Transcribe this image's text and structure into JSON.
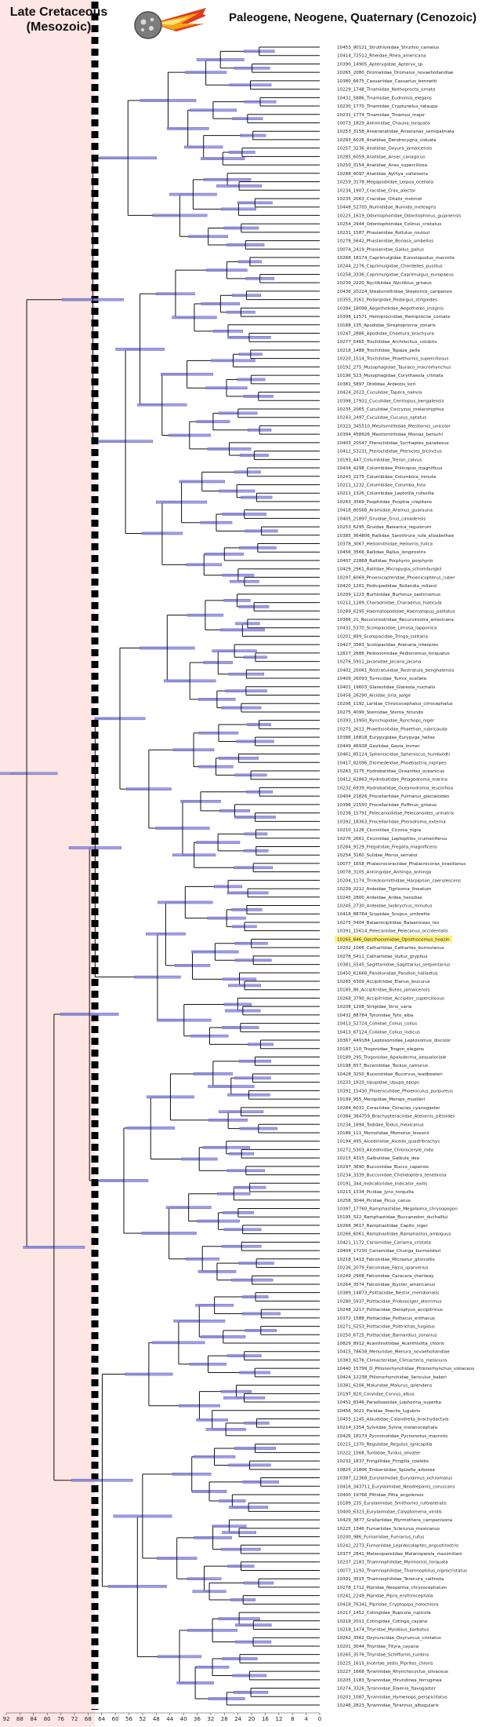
{
  "header": {
    "left_title_line1": "Late Cretaceous",
    "left_title_line2": "(Mesozoic)",
    "right_title": "Paleogene, Neogene, Quaternary (Cenozoic)"
  },
  "colors": {
    "mesozoic_bg": "#fde6e3",
    "kpg_boundary": "#000000",
    "branch": "#111111",
    "node_bar": "#8f8ce0",
    "node_bar_border": "#5a57b8",
    "highlight": "#fff27a"
  },
  "icon": "asteroid-impact-icon",
  "chart_data": {
    "type": "phylogenetic-tree",
    "title": "",
    "xlabel": "",
    "ylabel": "",
    "xlim": [
      92,
      0
    ],
    "x_ticks": [
      92,
      88,
      84,
      80,
      76,
      72,
      68,
      64,
      60,
      56,
      52,
      48,
      44,
      40,
      36,
      32,
      28,
      24,
      20,
      16,
      12,
      8,
      4,
      0
    ],
    "kpg_boundary_ma": 66,
    "highlighted_leaf": "10265_846_Opisthocomidae_Opisthocomus_hoazin",
    "leaves": [
      "10453_90121_Struthionidae_Struthio_camelus",
      "10414_72512_Rheidae_Rhea_americana",
      "10390_14905_Apterygidae_Apteryx_sp",
      "10265_2080_Dromaiidae_Dromaius_novaehollandiae",
      "10380_6675_Casuariidae_Casuarius_bennetti",
      "10229_1748_Tinamidae_Nothoprocta_ornata",
      "10432_5886_Tinamidae_Eudromia_elegans",
      "10230_1770_Tinamidae_Crypturellus_tataupa",
      "10231_1774_Tinamidae_Tinamus_major",
      "10073_1829_Anhimidae_Chauna_torquata",
      "10253_3158_Anseranatidae_Anseranas_semipalmata",
      "10283_6026_Anatidae_Dendrocygna_viduata",
      "10257_3236_Anatidae_Oxyura_jamaicensis",
      "10285_6059_Anatidae_Anser_canagicus",
      "10250_3154_Anatidae_Anas_superciliosa",
      "10288_6097_Anatidae_Aythya_valisineria",
      "10259_3178_Megapodiidae_Leipoa_ocellata",
      "10234_1907_Cracidae_Crax_alector",
      "10235_2063_Cracidae_Ortalis_motmot",
      "10448_52705_Numididae_Numida_meleagris",
      "10225_1619_Odontophoridae_Odontophorus_gujanensis",
      "10254_2944_Odontophoridae_Colinus_cristatus",
      "10231_1587_Phasianidae_Rollulus_rouloul",
      "10278_5642_Phasianidae_Bonasa_umbellus",
      "10074_2419_Phasianidae_Gallus_gallus",
      "10268_18174_Caprimulgidae_Eurostopodus_macrotis",
      "10244_2276_Caprimulgidae_Chordeiles_pusillus",
      "10258_3336_Caprimulgidae_Caprimulgus_europaeus",
      "10239_2220_Nyctibiidae_Nyctibius_griseus",
      "10436_20224_Steatornithidae_Steatornis_caripensis",
      "10355_3161_Podargidae_Podargus_strigoides",
      "10394_18098_Aegothelidae_Aegotheles_insignis",
      "10398_12571_Hemiprocnidae_Hemiprocne_comata",
      "10188_135_Apodidae_Streptoprocne_zonaris",
      "10247_2886_Apodidae_Chaetura_brachyura",
      "10277_5465_Trochilidae_Archilochus_colubris",
      "10218_1488_Trochilidae_Topaza_pella",
      "10220_1514_Trochilidae_Phaethornis_superciliosus",
      "10192_275_Musophagidae_Tauraco_macrorhynchus",
      "10196_523_Musophagidae_Corythaeola_cristata",
      "10381_5897_Otididae_Ardeotis_kori",
      "10424_2023_Cuculidae_Tapera_naevia",
      "10398_17932_Cuculidae_Centropus_bengalensis",
      "10235_2065_Cuculidae_Coccyzus_melacoryphus",
      "10243_2497_Cuculidae_Cuculus_optatus",
      "10323_345510_Mesitornithidae_Mesitornis_unicolor",
      "10394_458926_Mesitornithidae_Monias_benschi",
      "10403_20547_Pteroclididae_Syrrhaptes_paradoxus",
      "10411_53231_Pteroclididae_Pterocles_bicinctus",
      "10193_447_Columbidae_Treron_calvus",
      "10434_4298_Columbidae_Ptilinopus_magnificus",
      "10243_2275_Columbidae_Columbina_minuta",
      "10211_1232_Columbidae_Columba_livia",
      "10211_1326_Columbidae_Leptotila_rufaxilla",
      "10263_3569_Psophiidae_Psophia_crepitans",
      "10418_80568_Aramidae_Aramus_guarauna",
      "10405_21897_Gruidae_Grus_canadensis",
      "10253_6295_Gruidae_Balearica_regulorum",
      "10385_364806_Rallidae_Sarothrura_rufa_elizabethae",
      "10378_3067_Heliornithidae_Heliornis_fulica",
      "10456_3566_Rallidae_Rallus_longirostris",
      "10407_22868_Rallidae_Porphyrio_porphyrio",
      "10429_2961_Rallidae_Micropygia_schomburgkii",
      "10297_6069_Phoenicopteridae_Phoenicopterus_ruber",
      "10420_1201_Podicipedidae_Rollandia_rolland",
      "10209_1223_Burhinidae_Burhinus_oedicnemus",
      "10212_1289_Charadriidae_Charadrius_hiaticula",
      "10289_6295_Haematopodidae_Haematopus_palliatus",
      "10386_21_Recurvirostridae_Recurvirostra_americana",
      "10431_5370_Scolopacidae_Limosa_lapponica",
      "10201_899_Scolopacidae_Tringa_solitaria",
      "10427_3583_Scolopacidae_Arenaria_interpres",
      "12827_2686_Pedionomidae_Pedionomus_torquatus",
      "10276_5911_Jacanidae_Jacana_jacana",
      "10402_20061_Rostratulidae_Rostratula_benghalensis",
      "10409_26093_Turnicidae_Turnix_ocellata",
      "10401_19603_Glareolidae_Glareola_nuchalis",
      "10456_26290_Alcidae_Uria_aalge",
      "10206_1192_Laridae_Chroicocephalus_cirrocephalus",
      "10275_4099_Sternidae_Sterna_hirundo",
      "10393_13950_Rynchopidae_Rynchops_niger",
      "10275_2613_Phaethontidae_Phaethon_rubricauda",
      "10386_16818_Eurypygidae_Eurypyga_helias",
      "10449_46938_Gaviidae_Gavia_immer",
      "10461_85124_Spheniscidae_Spheniscus_humboldti",
      "10417_82096_Diomedeidae_Phoebastria_nigripes",
      "10263_3175_Hydrobatidae_Oceanites_oceanicus",
      "10412_62863_Hydrobatidae_Pelagodroma_marina",
      "10232_6939_Hydrobatidae_Oceanodroma_leucorhoa",
      "10404_21826_Procellariidae_Fulmarus_glacialoides",
      "10396_22550_Procellariidae_Puffinus_griseus",
      "10238_15791_Pelecanoididae_Pelecanoides_urinatrix",
      "10392_18363_Procellariidae_Pterodroma_externa",
      "10210_1226_Ciconiidae_Ciconia_nigra",
      "10276_2661_Ciconiidae_Leptoptilos_crumeniferus",
      "10284_9129_Fregatidae_Fregata_magnificens",
      "10254_3160_Sulidae_Morus_serrator",
      "10077_1658_Phalacrocoracidae_Phalacrocorax_brasilianus",
      "10078_3105_Anhingidae_Anhinga_anhinga",
      "10204_1174_Threskiornithidae_Harpiprion_caerulescens",
      "10239_2212_Ardeidae_Tigrisoma_lineatum",
      "10245_2800_Ardeidae_Ardea_herodias",
      "10245_2730_Ardeidae_Ixobrychus_minutus",
      "10418_88784_Scopidae_Scopus_umbretta",
      "10275_5404_Balaenicipitidae_Balaeniceps_rex",
      "10391_15614_Pelecanidae_Pelecanus_occidentalis",
      "10265_846_Opisthocomidae_Opisthocomus_hoazin",
      "10202_1066_Cathartidae_Cathartes_burrovianus",
      "10278_5411_Cathartidae_Vultur_gryphus",
      "10381_5545_Sagittariidae_Sagittarius_serpentarius",
      "10450_61668_Pandionidae_Pandion_haliaetus",
      "10285_6309_Accipitridae_Elanus_leucurus",
      "10185_86_Accipitridae_Buteo_jamaicensis",
      "10268_3790_Accipitridae_Accipiter_superciliosus",
      "10208_1208_Strigidae_Strix_varia",
      "10432_88784_Tytonidae_Tyto_alba",
      "10413_52724_Coliidae_Colius_colius",
      "10413_67124_Coliidae_Colius_indicus",
      "10367_449184_Leptosomidae_Leptosomus_discolor",
      "10187_110_Trogonidae_Trogon_elegans",
      "10189_295_Trogonidae_Apaloderma_aequatoriale",
      "10198_657_Bucerotidae_Tockus_camurus",
      "10428_3250_Bucerotidae_Bucorvus_leadbeateri",
      "10233_1920_Upupidae_Upupa_epops",
      "10392_15430_Phoeniculidae_Phoeniculus_purpureus",
      "10199_955_Meropidae_Merops_muelleri",
      "10284_6031_Coraciidae_Coracias_cyanogaster",
      "10384_384759_Brachypteraciidae_Atelornis_pittoides",
      "10234_1894_Todidae_Todus_mexicanus",
      "10186_111_Momotidae_Momotus_lessonii",
      "10194_495_Alcedinidae_Alcedo_quadribrachys",
      "10272_5303_Alcedinidae_Chloroceryle_inda",
      "10215_4315_Galbulidae_Galbula_dea",
      "10297_3690_Bucconidae_Bucco_capensis",
      "10234_3339_Bucconidae_Chelidoptera_tenebrosa",
      "10191_344_Indicatoridae_Indicator_exilis",
      "10213_1334_Picidae_Jynx_torquilla",
      "10258_3044_Picidae_Picus_canus",
      "10397_17760_Ramphastidae_Megalaima_chrysopogon",
      "10195_522_Ramphastidae_Buccanodon_duchaillui",
      "10266_3617_Ramphastidae_Capito_niger",
      "10266_6061_Ramphastidae_Ramphastos_ambiguus",
      "10421_1172_Cariamidae_Cariama_cristata",
      "10404_17230_Cariamidae_Chunga_burmeisteri",
      "10218_1413_Falconidae_Micrastur_gilvicollis",
      "10236_2079_Falconidae_Falco_sparverius",
      "10249_2908_Falconidae_Caracara_cheriway",
      "10264_3574_Falconidae_Ibycter_americanus",
      "10389_14873_Psittacidae_Nestor_meridionalis",
      "10280_5937_Psittacidae_Probosciger_aterrimus",
      "10248_2217_Psittacidae_Deroptyus_accipitrinus",
      "10372_1588_Psittacidae_Psittacus_erithacus",
      "10271_5253_Psittacidae_Psittrichas_fulgidus",
      "10250_6725_Psittacidae_Barnardius_zonarius",
      "10829_8912_Acanthisittidae_Acanthisitta_chloris",
      "10415_78638_Menuridae_Menura_novaehollandiae",
      "10383_6176_Climacteridae_Climacteris_melanura",
      "10440_15799_D_Ptilonorhynchidae_Ptilonorhynchus_violaceus",
      "10424_12238_Ptilonorhynchidae_Sericulus_bakeri",
      "10381_6206_Maluridae_Malurus_splendens",
      "10197_820_Corvidae_Corvus_albus",
      "10452_8346_Paradisaeidae_Lophorina_superba",
      "10456_3021_Paridae_Poecile_lugubris",
      "10455_1245_Alaudidae_Calandrella_brachydactyla",
      "10214_1354_Sylviidae_Sylvia_melanocephala",
      "10426_18173_Pycnonotidae_Pycnonotus_macrotis",
      "10215_1370_Regulidae_Regulus_ignicapilla",
      "10222_1568_Turdidae_Turdus_olivater",
      "10232_1837_Fringillidae_Fringilla_coelebs",
      "10825_21896_Emberizidae_Spizella_arborea",
      "10387_12368_Eurylaimidae_Eurylaimus_ochromalus",
      "10416_343711_Eurylaimidae_Neodrepanis_coruscans",
      "10400_19766_Pittidae_Pitta_angolensis",
      "10189_235_Eurylaimidae_Smithornis_rufolateralis",
      "10400_6323_Eurylaimidae_Calyptomena_viridis",
      "10429_3877_Grallariidae_Myrmothera_campanisona",
      "10225_1346_Furnariidae_Sclerurus_mexicanus",
      "10200_986_Furnariidae_Furnarius_rufus",
      "10242_2273_Furnariidae_Lepidocolaptes_angustirostris",
      "10377_2841_Melanopareiidae_Melanopareia_maximiliani",
      "10237_2183_Thamnophilidae_Myrmornis_torquata",
      "10077_1193_Thamnophilidae_Thamnophilus_nigrocristatus",
      "10391_3515_Thamnophilidae_Terenura_callinota",
      "10278_1712_Pipridae_Neopelma_chrysocephalum",
      "10241_2249_Pipridae_Pipra_erythrocephala",
      "10418_76341_Pipridae_Cryptopipo_holochlora",
      "10217_1452_Cotingidae_Rupicola_rupicola",
      "10218_2011_Cotingidae_Cotinga_cayana",
      "10218_1474_Tityridae_Myiobius_barbatus",
      "10262_3562_Oxyruncidae_Oxyruncus_cristatus",
      "10201_3044_Tityridae_Tityra_cayana",
      "10265_3576_Tityridae_Schiffornis_turdina",
      "10225_1615_Incertae_sedis_Piprites_chloris",
      "10227_1668_Tyrannidae_Rhynchocyclus_olivaceus",
      "10205_1183_Tyrannidae_Hirundinea_ferruginea",
      "10274_3326_Tyrannidae_Elaenia_flavogaster",
      "10203_1087_Tyrannidae_Hymenops_perspicillatus",
      "10246_2823_Tyrannidae_Tyrannus_albogularis"
    ]
  }
}
